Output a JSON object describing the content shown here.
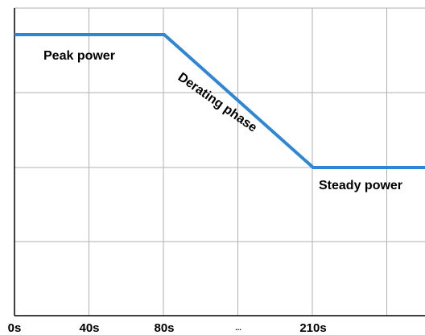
{
  "chart_data": {
    "type": "line",
    "x_tick_labels": [
      "0s",
      "40s",
      "80s",
      "...",
      "210s"
    ],
    "series": [
      {
        "x": [
          "0s",
          "80s",
          "210s",
          "end"
        ],
        "y_level": [
          "peak",
          "peak",
          "steady",
          "steady"
        ],
        "color": "#2e86d4"
      }
    ],
    "annotations": {
      "peak": "Peak power",
      "derating": "Derating phase",
      "steady": "Steady power"
    },
    "grid": true
  }
}
